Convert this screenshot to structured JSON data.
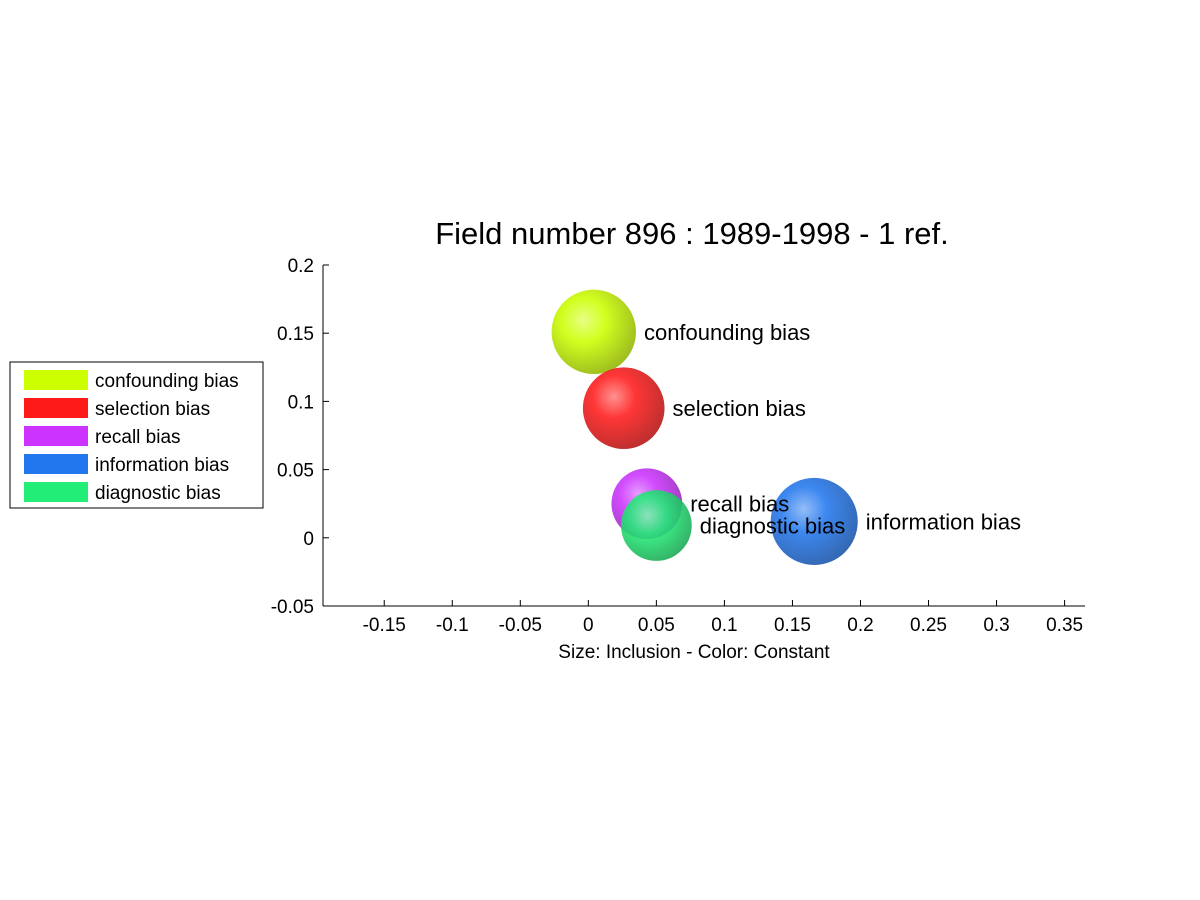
{
  "chart_data": {
    "type": "scatter",
    "title": "Field number 896 : 1989-1998  - 1 ref.",
    "xlabel": "Size: Inclusion - Color: Constant",
    "ylabel": "",
    "xlim": [
      -0.195,
      0.365
    ],
    "ylim": [
      -0.05,
      0.2
    ],
    "x_ticks": [
      "-0.15",
      "-0.1",
      "-0.05",
      "0",
      "0.05",
      "0.1",
      "0.15",
      "0.2",
      "0.25",
      "0.3",
      "0.35"
    ],
    "y_ticks": [
      "-0.05",
      "0",
      "0.05",
      "0.1",
      "0.15",
      "0.2"
    ],
    "grid": false,
    "legend_position": "left",
    "series": [
      {
        "name": "confounding bias",
        "x": 0.004,
        "y": 0.151,
        "size": 0.031,
        "color": "#ccff00"
      },
      {
        "name": "selection bias",
        "x": 0.026,
        "y": 0.095,
        "size": 0.03,
        "color": "#ff1a1a"
      },
      {
        "name": "recall bias",
        "x": 0.043,
        "y": 0.025,
        "size": 0.026,
        "color": "#cc33ff"
      },
      {
        "name": "information bias",
        "x": 0.166,
        "y": 0.012,
        "size": 0.032,
        "color": "#2277ee"
      },
      {
        "name": "diagnostic bias",
        "x": 0.05,
        "y": 0.009,
        "size": 0.026,
        "color": "#22ee77"
      }
    ]
  }
}
